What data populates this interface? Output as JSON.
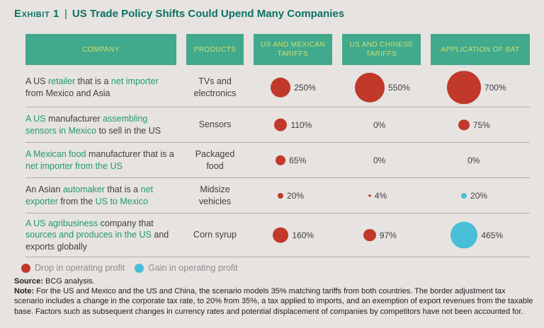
{
  "header": {
    "exhibit_label": "Exhibit 1",
    "separator": "|",
    "title": "US Trade Policy Shifts Could Upend Many Companies"
  },
  "colors": {
    "drop": "#c0392b",
    "gain": "#48bed8",
    "header_bg": "#41a98c",
    "header_text": "#cde06e",
    "title_text": "#0b7261",
    "green_text": "#23996e",
    "body_text": "#3f3f3f",
    "legend_text": "#8e8e8e",
    "background": "#e6e3e1",
    "divider": "#b0adab"
  },
  "chart_data": {
    "type": "bubble-table",
    "title": "US Trade Policy Shifts Could Upend Many Companies",
    "columns": [
      "COMPANY",
      "PRODUCTS",
      "US AND MEXICAN TARIFFS",
      "US AND CHINESE TARIFFS",
      "APPLICATION OF BAT"
    ],
    "bubble_scale": "radius_px = 0.9 * sqrt(percent); bubble area proportional to percent",
    "rows": [
      {
        "company": "A US retailer that is a net importer from Mexico and Asia",
        "company_segments": [
          {
            "text": "A US ",
            "green": false
          },
          {
            "text": "retailer",
            "green": true
          },
          {
            "text": " that is a ",
            "green": false
          },
          {
            "text": "net importer",
            "green": true
          },
          {
            "text": " from Mexico and Asia",
            "green": false
          }
        ],
        "product": "TVs and electronics",
        "cells": [
          {
            "label": "250%",
            "value": 250,
            "direction": "drop"
          },
          {
            "label": "550%",
            "value": 550,
            "direction": "drop"
          },
          {
            "label": "700%",
            "value": 700,
            "direction": "drop"
          }
        ]
      },
      {
        "company": "A US manufacturer assembling sensors in Mexico to sell in the US",
        "company_segments": [
          {
            "text": "A US",
            "green": true
          },
          {
            "text": " manufacturer ",
            "green": false
          },
          {
            "text": "assembling sensors in Mexico",
            "green": true
          },
          {
            "text": " to sell in the US",
            "green": false
          }
        ],
        "product": "Sensors",
        "cells": [
          {
            "label": "110%",
            "value": 110,
            "direction": "drop"
          },
          {
            "label": "0%",
            "value": 0,
            "direction": "none"
          },
          {
            "label": "75%",
            "value": 75,
            "direction": "drop"
          }
        ]
      },
      {
        "company": "A Mexican food manufacturer that is a net importer from the US",
        "company_segments": [
          {
            "text": "A Mexican food",
            "green": true
          },
          {
            "text": " manufacturer that is a ",
            "green": false
          },
          {
            "text": "net importer from the US",
            "green": true
          }
        ],
        "product": "Packaged food",
        "cells": [
          {
            "label": "65%",
            "value": 65,
            "direction": "drop"
          },
          {
            "label": "0%",
            "value": 0,
            "direction": "none"
          },
          {
            "label": "0%",
            "value": 0,
            "direction": "none"
          }
        ]
      },
      {
        "company": "An Asian automaker that is a net exporter from the US to Mexico",
        "company_segments": [
          {
            "text": "An Asian ",
            "green": false
          },
          {
            "text": "automaker",
            "green": true
          },
          {
            "text": " that is a ",
            "green": false
          },
          {
            "text": "net exporter",
            "green": true
          },
          {
            "text": " from the ",
            "green": false
          },
          {
            "text": "US to Mexico",
            "green": true
          }
        ],
        "product": "Midsize vehicles",
        "cells": [
          {
            "label": "20%",
            "value": 20,
            "direction": "drop"
          },
          {
            "label": "4%",
            "value": 4,
            "direction": "drop"
          },
          {
            "label": "20%",
            "value": 20,
            "direction": "gain"
          }
        ]
      },
      {
        "company": "A US agribusiness company that sources and produces in the US and exports globally",
        "company_segments": [
          {
            "text": "A US agribusiness",
            "green": true
          },
          {
            "text": " company that ",
            "green": false
          },
          {
            "text": "sources and produces in the US",
            "green": true
          },
          {
            "text": " and exports globally",
            "green": false
          }
        ],
        "product": "Corn syrup",
        "cells": [
          {
            "label": "160%",
            "value": 160,
            "direction": "drop"
          },
          {
            "label": "97%",
            "value": 97,
            "direction": "drop"
          },
          {
            "label": "465%",
            "value": 465,
            "direction": "gain"
          }
        ]
      }
    ],
    "legend": [
      {
        "label": "Drop in operating profit",
        "direction": "drop"
      },
      {
        "label": "Gain in operating profit",
        "direction": "gain"
      }
    ]
  },
  "footer": {
    "source_label": "Source:",
    "source_text": " BCG analysis.",
    "note_label": "Note:",
    "note_text": " For the US and Mexico and the US and China, the scenario models 35% matching tariffs from both countries. The border adjustment tax scenario includes a change in the corporate tax rate, to 20% from 35%, a tax applied to imports, and an exemption of export revenues from the taxable base. Factors such as subsequent changes in currency rates and potential displacement of companies by competitors have not been accounted for."
  }
}
